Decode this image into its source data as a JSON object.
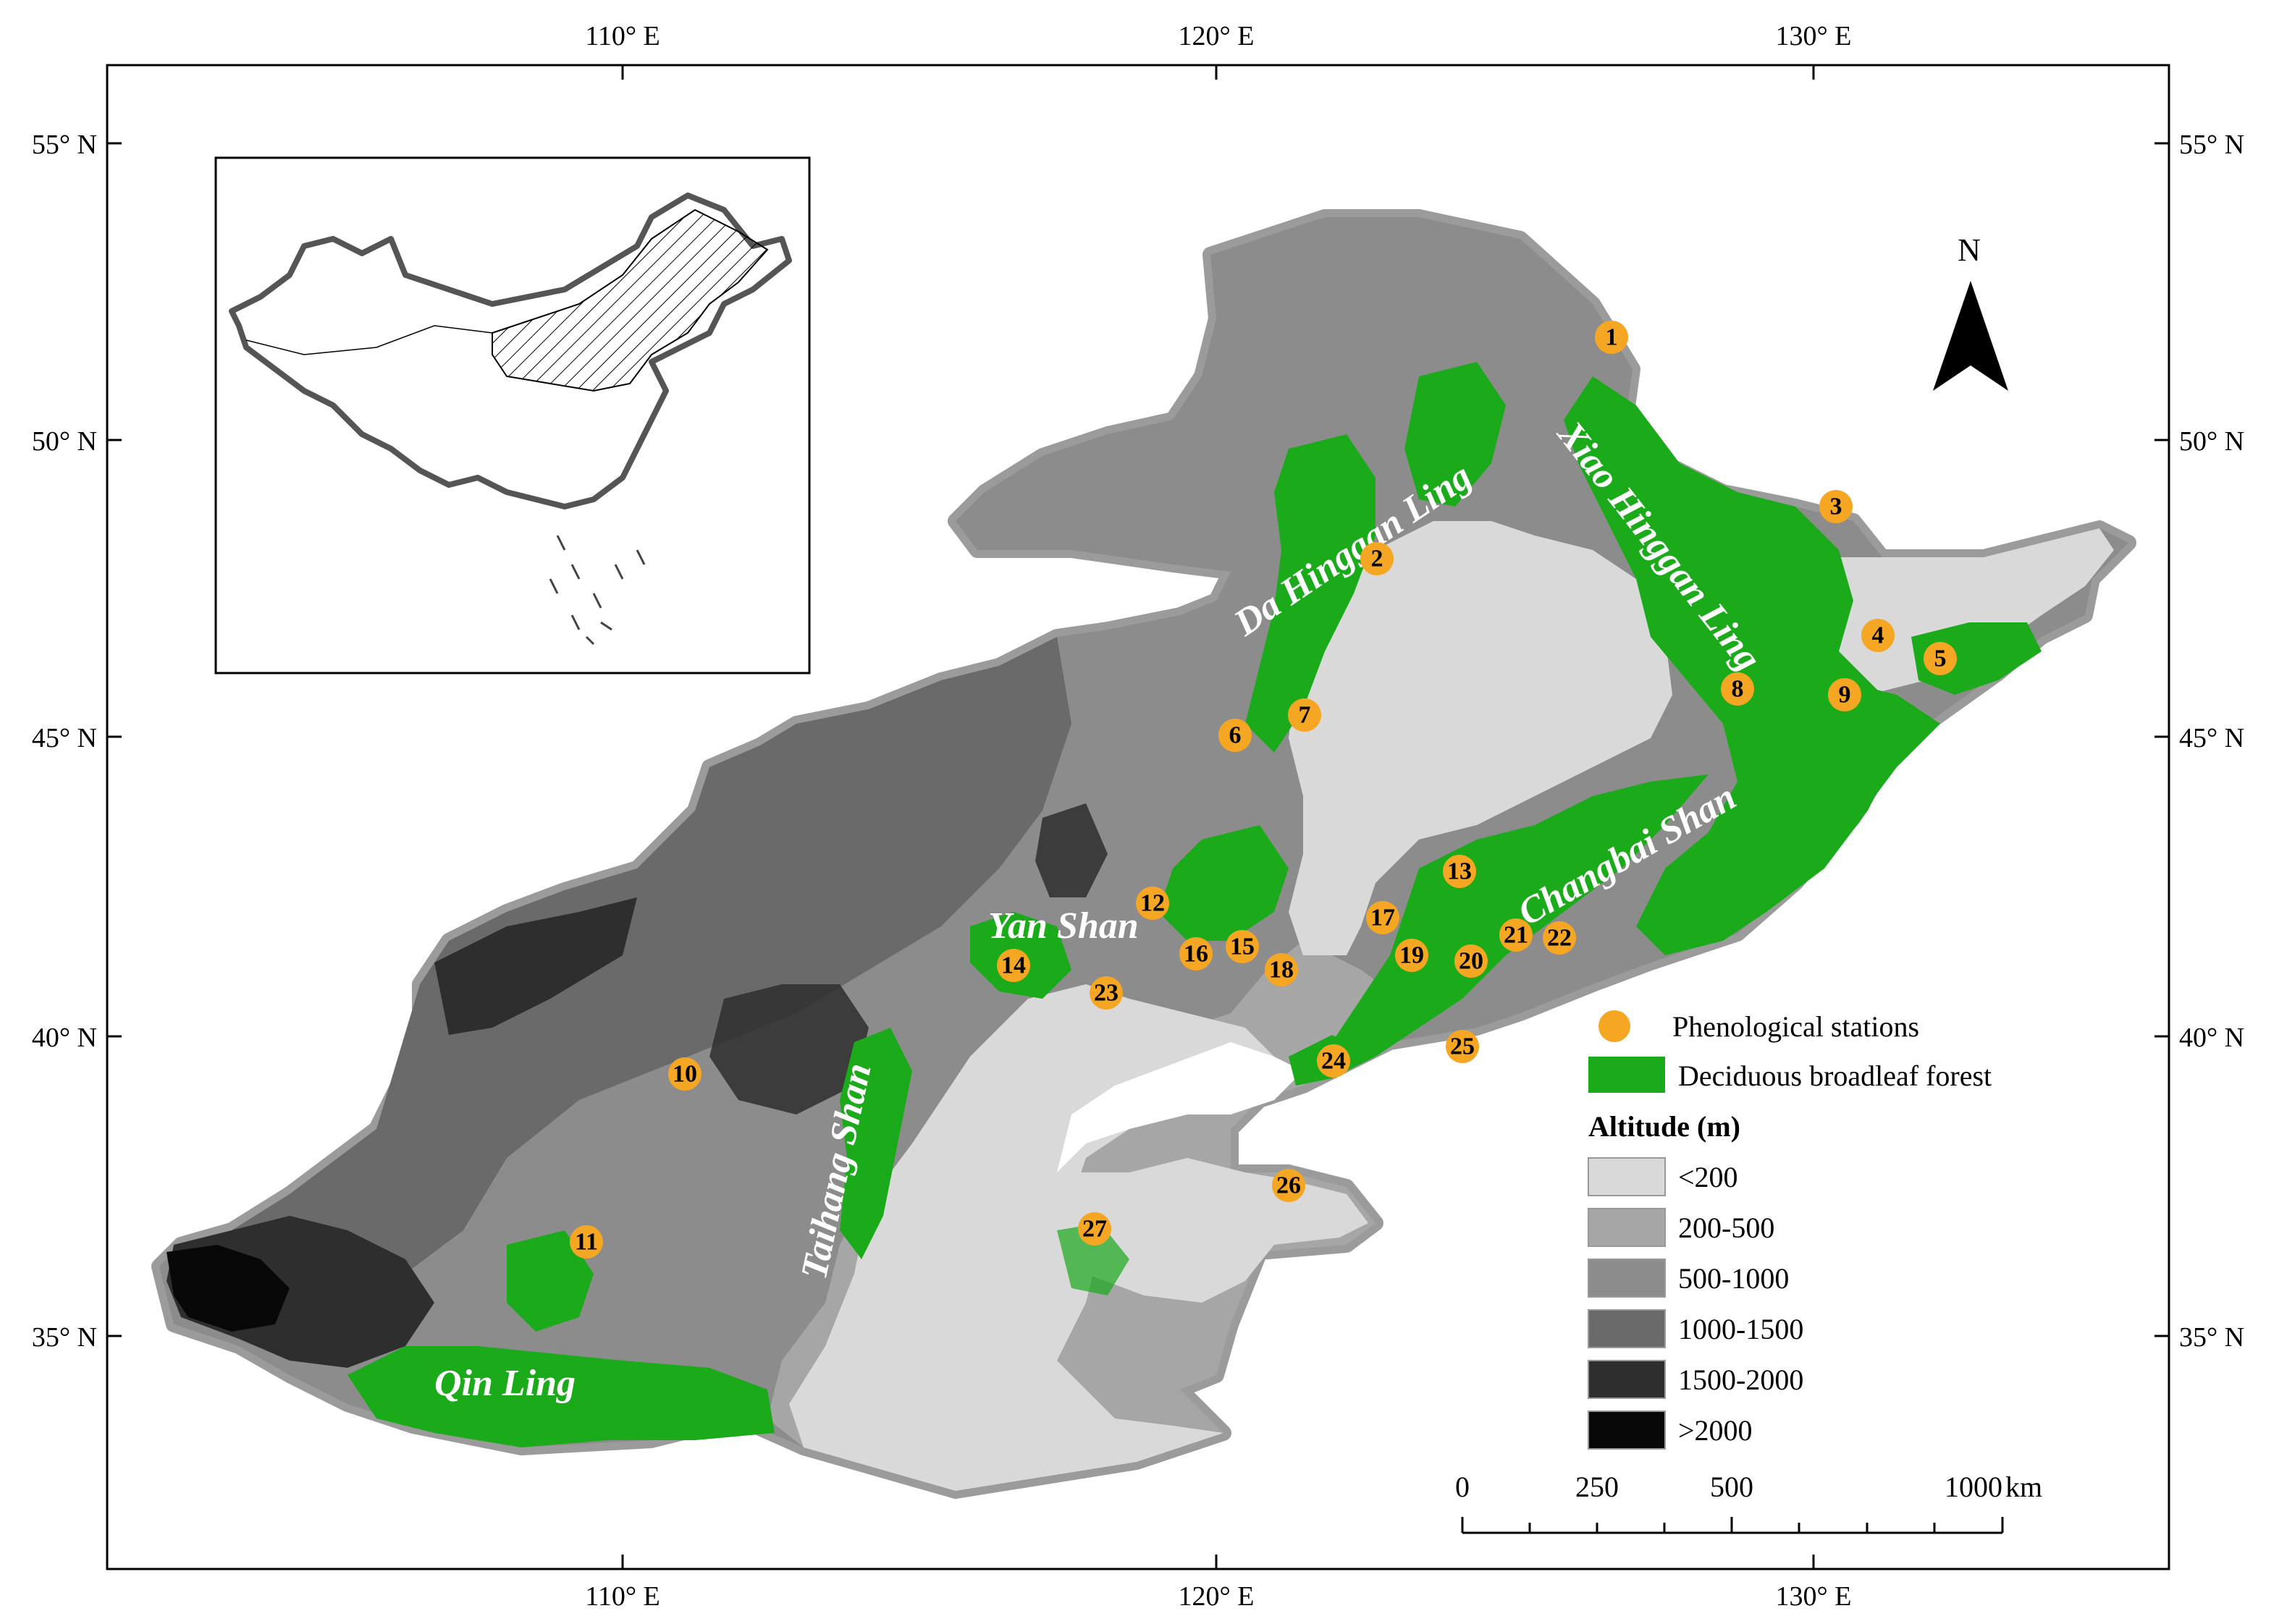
{
  "map": {
    "axes": {
      "top_ticks": [
        "110° E",
        "120° E",
        "130° E"
      ],
      "bottom_ticks": [
        "110° E",
        "120° E",
        "130° E"
      ],
      "left_ticks": [
        "55° N",
        "50° N",
        "45° N",
        "40° N",
        "35° N"
      ],
      "right_ticks": [
        "55° N",
        "50° N",
        "45° N",
        "40° N",
        "35° N"
      ]
    },
    "mountain_ranges": [
      "Da Hinggan Ling",
      "Xiao Hinggan Ling",
      "Changbai Shan",
      "Yan Shan",
      "Taihang Shan",
      "Qin Ling"
    ],
    "north_arrow": "N",
    "stations": [
      "1",
      "2",
      "3",
      "4",
      "5",
      "6",
      "7",
      "8",
      "9",
      "10",
      "11",
      "12",
      "13",
      "14",
      "15",
      "16",
      "17",
      "18",
      "19",
      "20",
      "21",
      "22",
      "23",
      "24",
      "25",
      "26",
      "27"
    ],
    "legend": {
      "stations_label": "Phenological stations",
      "forest_label": "Deciduous broadleaf forest",
      "altitude_title": "Altitude (m)",
      "altitude_classes": [
        "<200",
        "200-500",
        "500-1000",
        "1000-1500",
        "1500-2000",
        ">2000"
      ]
    },
    "scale_bar": {
      "labels": [
        "0",
        "250",
        "500",
        "1000"
      ],
      "unit": "km"
    },
    "colors": {
      "station": "#F5A623",
      "forest": "#1AAA1A",
      "alt_lt200": "#D9D9D9",
      "alt_200_500": "#A6A6A6",
      "alt_500_1000": "#8C8C8C",
      "alt_1000_1500": "#6A6A6A",
      "alt_1500_2000": "#2E2E2E",
      "alt_gt2000": "#080808"
    }
  }
}
